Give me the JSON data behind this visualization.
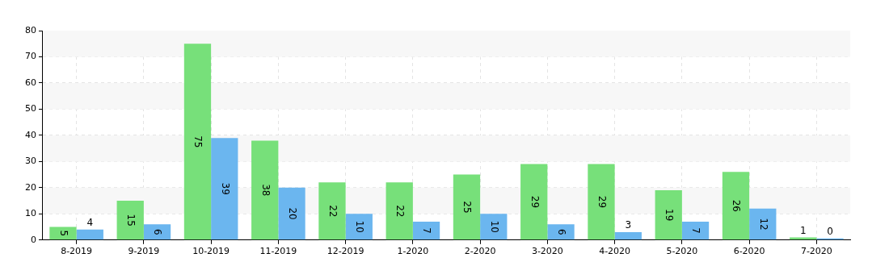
{
  "chart_data": {
    "type": "bar",
    "categories": [
      "8-2019",
      "9-2019",
      "10-2019",
      "11-2019",
      "12-2019",
      "1-2020",
      "2-2020",
      "3-2020",
      "4-2020",
      "5-2020",
      "6-2020",
      "7-2020"
    ],
    "series": [
      {
        "color": "#77e07a",
        "values": [
          5,
          15,
          75,
          38,
          22,
          22,
          25,
          29,
          29,
          19,
          26,
          1
        ]
      },
      {
        "color": "#6bb6ef",
        "values": [
          4,
          6,
          39,
          20,
          10,
          7,
          10,
          6,
          3,
          7,
          12,
          0
        ]
      }
    ],
    "ylim": [
      0,
      80
    ],
    "yticks": [
      0,
      10,
      20,
      30,
      40,
      50,
      60,
      70,
      80
    ],
    "grid": true,
    "line_style": "dashed",
    "data_labels": true,
    "legend": false,
    "bands": [
      {
        "axis": "y",
        "from": 10,
        "to": 20,
        "color": "#f7f7f7"
      },
      {
        "axis": "y",
        "from": 30,
        "to": 40,
        "color": "#f7f7f7"
      },
      {
        "axis": "y",
        "from": 50,
        "to": 60,
        "color": "#f7f7f7"
      },
      {
        "axis": "y",
        "from": 70,
        "to": 80,
        "color": "#f7f7f7"
      }
    ]
  }
}
